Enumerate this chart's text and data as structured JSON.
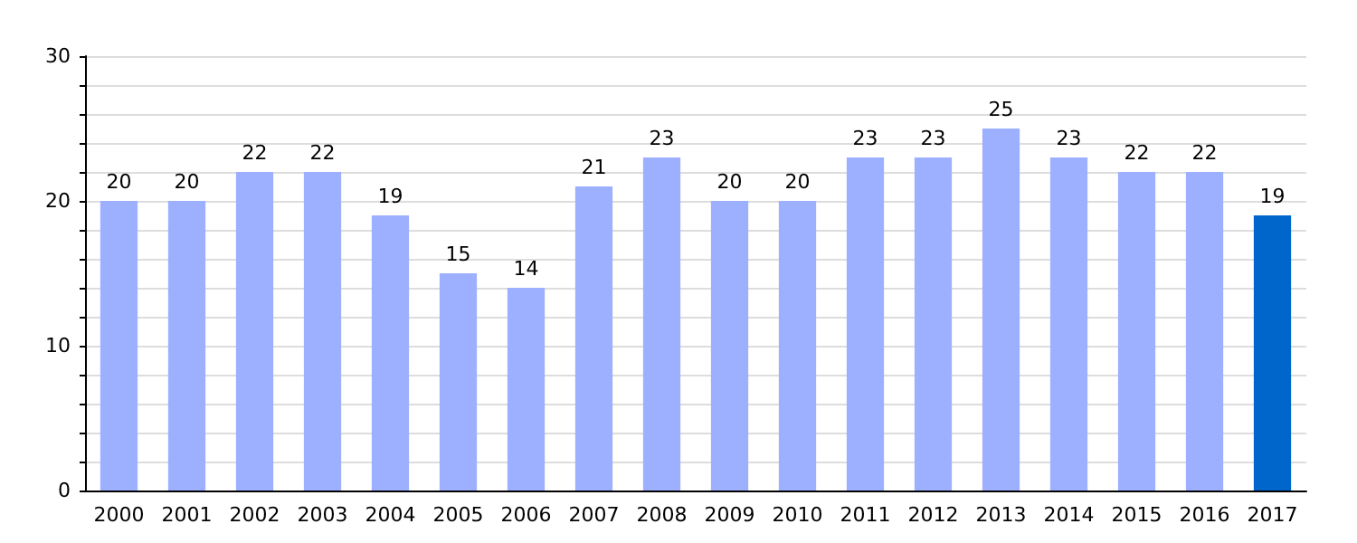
{
  "chart_data": {
    "type": "bar",
    "categories": [
      "2000",
      "2001",
      "2002",
      "2003",
      "2004",
      "2005",
      "2006",
      "2007",
      "2008",
      "2009",
      "2010",
      "2011",
      "2012",
      "2013",
      "2014",
      "2015",
      "2016",
      "2017"
    ],
    "values": [
      20,
      20,
      22,
      22,
      19,
      15,
      14,
      21,
      23,
      20,
      20,
      23,
      23,
      25,
      23,
      22,
      22,
      19
    ],
    "colors": [
      "#9db0ff",
      "#9db0ff",
      "#9db0ff",
      "#9db0ff",
      "#9db0ff",
      "#9db0ff",
      "#9db0ff",
      "#9db0ff",
      "#9db0ff",
      "#9db0ff",
      "#9db0ff",
      "#9db0ff",
      "#9db0ff",
      "#9db0ff",
      "#9db0ff",
      "#9db0ff",
      "#9db0ff",
      "#0066cc"
    ],
    "ylim": [
      0,
      30
    ],
    "yticks": [
      0,
      {
        "value": 2,
        "label": null
      },
      {
        "value": 4,
        "label": null
      },
      {
        "value": 6,
        "label": null
      },
      {
        "value": 8,
        "label": null
      },
      10,
      {
        "value": 12,
        "label": null
      },
      {
        "value": 14,
        "label": null
      },
      {
        "value": 16,
        "label": null
      },
      {
        "value": 18,
        "label": null
      },
      20,
      {
        "value": 22,
        "label": null
      },
      {
        "value": 24,
        "label": null
      },
      {
        "value": 26,
        "label": null
      },
      {
        "value": 28,
        "label": null
      },
      30
    ],
    "data_labels": true,
    "grid": "y"
  }
}
